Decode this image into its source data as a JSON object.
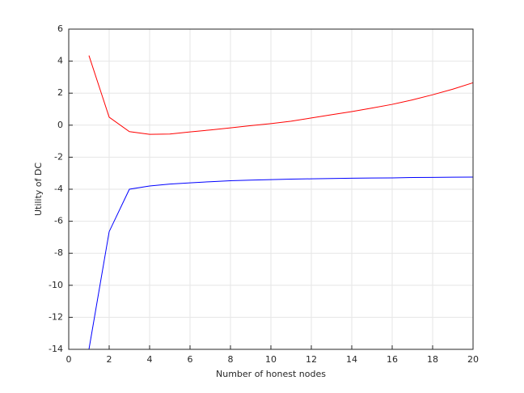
{
  "chart_data": {
    "type": "line",
    "xlabel": "Number of honest nodes",
    "ylabel": "Utility of DC",
    "x": [
      1,
      2,
      3,
      4,
      5,
      6,
      7,
      8,
      9,
      10,
      11,
      12,
      13,
      14,
      15,
      16,
      17,
      18,
      19,
      20
    ],
    "series": [
      {
        "color": "#ff0000",
        "values": [
          4.35,
          0.5,
          -0.4,
          -0.57,
          -0.55,
          -0.42,
          -0.3,
          -0.17,
          -0.03,
          0.1,
          0.25,
          0.45,
          0.65,
          0.85,
          1.07,
          1.3,
          1.58,
          1.9,
          2.25,
          2.65
        ]
      },
      {
        "color": "#0000ff",
        "values": [
          -14,
          -6.65,
          -4.0,
          -3.8,
          -3.68,
          -3.6,
          -3.53,
          -3.47,
          -3.43,
          -3.4,
          -3.37,
          -3.35,
          -3.33,
          -3.31,
          -3.3,
          -3.29,
          -3.27,
          -3.26,
          -3.25,
          -3.24
        ]
      }
    ],
    "xlim": [
      0,
      20
    ],
    "xticks": [
      0,
      2,
      4,
      6,
      8,
      10,
      12,
      14,
      16,
      18,
      20
    ],
    "ylim": [
      -14,
      6
    ],
    "yticks": [
      -14,
      -12,
      -10,
      -8,
      -6,
      -4,
      -2,
      0,
      2,
      4,
      6
    ],
    "grid": true
  }
}
